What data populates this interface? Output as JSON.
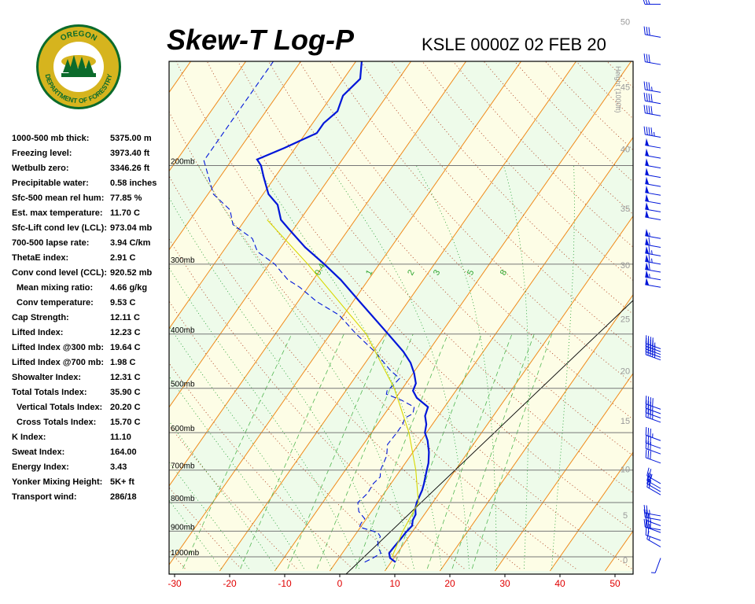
{
  "header": {
    "title": "Skew-T Log-P",
    "subtitle": "KSLE 0000Z 02 FEB 20",
    "logo_text_top": "OREGON",
    "logo_text_bottom": "DEPARTMENT OF FORESTRY"
  },
  "indices": [
    {
      "label": "1000-500 mb thick:",
      "value": "5375.00 m",
      "indent": false
    },
    {
      "label": "Freezing level:",
      "value": "3973.40 ft",
      "indent": false
    },
    {
      "label": "Wetbulb zero:",
      "value": "3346.26 ft",
      "indent": false
    },
    {
      "label": "Precipitable water:",
      "value": "0.58 inches",
      "indent": false
    },
    {
      "label": "Sfc-500 mean rel hum:",
      "value": "77.85 %",
      "indent": false
    },
    {
      "label": "Est. max temperature:",
      "value": "11.70 C",
      "indent": false
    },
    {
      "label": "Sfc-Lift cond lev (LCL):",
      "value": "973.04 mb",
      "indent": false
    },
    {
      "label": "700-500 lapse rate:",
      "value": "3.94 C/km",
      "indent": false
    },
    {
      "label": "ThetaE index:",
      "value": "2.91 C",
      "indent": false
    },
    {
      "label": "Conv cond level (CCL):",
      "value": "920.52 mb",
      "indent": false
    },
    {
      "label": "Mean mixing ratio:",
      "value": "4.66 g/kg",
      "indent": true
    },
    {
      "label": "Conv temperature:",
      "value": "9.53 C",
      "indent": true
    },
    {
      "label": "Cap Strength:",
      "value": "12.11 C",
      "indent": false
    },
    {
      "label": "Lifted Index:",
      "value": "12.23 C",
      "indent": false
    },
    {
      "label": "Lifted Index @300 mb:",
      "value": "19.64 C",
      "indent": false
    },
    {
      "label": "Lifted Index @700 mb:",
      "value": "1.98 C",
      "indent": false
    },
    {
      "label": "Showalter Index:",
      "value": "12.31 C",
      "indent": false
    },
    {
      "label": "Total Totals Index:",
      "value": "35.90 C",
      "indent": false
    },
    {
      "label": "Vertical Totals Index:",
      "value": "20.20 C",
      "indent": true
    },
    {
      "label": "Cross Totals Index:",
      "value": "15.70 C",
      "indent": true
    },
    {
      "label": "K Index:",
      "value": "11.10",
      "indent": false
    },
    {
      "label": "Sweat Index:",
      "value": "164.00",
      "indent": false
    },
    {
      "label": "Energy Index:",
      "value": "3.43",
      "indent": false
    },
    {
      "label": "Yonker Mixing Height:",
      "value": "5K+ ft",
      "indent": false
    },
    {
      "label": "Transport wind:",
      "value": "286/18",
      "indent": false
    }
  ],
  "chart_data": {
    "type": "line",
    "title": "Skew-T Log-P",
    "subtitle": "KSLE 0000Z 02 FEB 20",
    "x_axis": {
      "ticks": [
        -30,
        -20,
        -10,
        0,
        10,
        20,
        30,
        40,
        50
      ],
      "tick_labels": [
        "-30",
        "-20",
        "-10",
        "0",
        "10",
        "20",
        "30",
        "40",
        "50"
      ],
      "color": "#e00000"
    },
    "pressure_levels": [
      {
        "p": 200,
        "label": "200mb"
      },
      {
        "p": 300,
        "label": "300mb"
      },
      {
        "p": 400,
        "label": "400mb"
      },
      {
        "p": 500,
        "label": "500mb"
      },
      {
        "p": 600,
        "label": "600mb"
      },
      {
        "p": 700,
        "label": "700mb"
      },
      {
        "p": 800,
        "label": "800mb"
      },
      {
        "p": 900,
        "label": "900mb"
      },
      {
        "p": 1000,
        "label": "1000mb"
      }
    ],
    "height_axis": {
      "label": "Height (1000ft)",
      "ticks": [
        0,
        5,
        10,
        15,
        20,
        25,
        30,
        35,
        40,
        45,
        50
      ],
      "tick_labels": [
        "0",
        "5",
        "10",
        "15",
        "20",
        "25",
        "30",
        "35",
        "40",
        "45",
        "50"
      ]
    },
    "mixing_ratio_labels": [
      "0.4",
      "1",
      "2",
      "3",
      "5",
      "8"
    ],
    "series": [
      {
        "name": "Temperature",
        "color": "#0016d9",
        "style": "solid",
        "points": [
          {
            "p": 1022,
            "t": 10.8
          },
          {
            "p": 1005,
            "t": 9.3
          },
          {
            "p": 985,
            "t": 8.5
          },
          {
            "p": 960,
            "t": 8.6
          },
          {
            "p": 930,
            "t": 8.8
          },
          {
            "p": 905,
            "t": 8.9
          },
          {
            "p": 880,
            "t": 9.2
          },
          {
            "p": 860,
            "t": 8.6
          },
          {
            "p": 840,
            "t": 8.4
          },
          {
            "p": 820,
            "t": 7.6
          },
          {
            "p": 800,
            "t": 7.1
          },
          {
            "p": 780,
            "t": 6.8
          },
          {
            "p": 760,
            "t": 6.5
          },
          {
            "p": 740,
            "t": 6.0
          },
          {
            "p": 720,
            "t": 5.4
          },
          {
            "p": 700,
            "t": 4.8
          },
          {
            "p": 680,
            "t": 4.2
          },
          {
            "p": 650,
            "t": 2.9
          },
          {
            "p": 620,
            "t": 1.2
          },
          {
            "p": 600,
            "t": -0.3
          },
          {
            "p": 580,
            "t": -1.1
          },
          {
            "p": 560,
            "t": -2.4
          },
          {
            "p": 540,
            "t": -3.0
          },
          {
            "p": 520,
            "t": -6.2
          },
          {
            "p": 505,
            "t": -7.8
          },
          {
            "p": 490,
            "t": -8.2
          },
          {
            "p": 470,
            "t": -9.8
          },
          {
            "p": 450,
            "t": -11.8
          },
          {
            "p": 430,
            "t": -14.5
          },
          {
            "p": 400,
            "t": -19.5
          },
          {
            "p": 350,
            "t": -28.8
          },
          {
            "p": 320,
            "t": -35.0
          },
          {
            "p": 300,
            "t": -40.0
          },
          {
            "p": 280,
            "t": -45.6
          },
          {
            "p": 260,
            "t": -50.8
          },
          {
            "p": 250,
            "t": -53.5
          },
          {
            "p": 235,
            "t": -56.0
          },
          {
            "p": 225,
            "t": -59.0
          },
          {
            "p": 210,
            "t": -62.0
          },
          {
            "p": 200,
            "t": -64.0
          },
          {
            "p": 195,
            "t": -65.5
          },
          {
            "p": 186,
            "t": -62.0
          },
          {
            "p": 175,
            "t": -58.0
          },
          {
            "p": 168,
            "t": -58.0
          },
          {
            "p": 160,
            "t": -57.0
          },
          {
            "p": 150,
            "t": -58.0
          },
          {
            "p": 140,
            "t": -57.0
          },
          {
            "p": 130,
            "t": -59.0
          },
          {
            "p": 122,
            "t": -58.5
          },
          {
            "p": 110,
            "t": -60.0
          },
          {
            "p": 100,
            "t": -60.0
          }
        ]
      },
      {
        "name": "Dewpoint",
        "color": "#0016d9",
        "style": "dashed",
        "points": [
          {
            "p": 1022,
            "t": 5.2
          },
          {
            "p": 1005,
            "t": 6.2
          },
          {
            "p": 985,
            "t": 7.0
          },
          {
            "p": 960,
            "t": 5.7
          },
          {
            "p": 940,
            "t": 5.0
          },
          {
            "p": 920,
            "t": 4.8
          },
          {
            "p": 905,
            "t": 3.8
          },
          {
            "p": 885,
            "t": -0.2
          },
          {
            "p": 870,
            "t": -0.4
          },
          {
            "p": 855,
            "t": -0.3
          },
          {
            "p": 830,
            "t": -2.3
          },
          {
            "p": 800,
            "t": -3.6
          },
          {
            "p": 770,
            "t": -3.0
          },
          {
            "p": 740,
            "t": -3.2
          },
          {
            "p": 720,
            "t": -2.8
          },
          {
            "p": 700,
            "t": -3.6
          },
          {
            "p": 660,
            "t": -4.3
          },
          {
            "p": 630,
            "t": -5.6
          },
          {
            "p": 600,
            "t": -5.4
          },
          {
            "p": 580,
            "t": -5.4
          },
          {
            "p": 565,
            "t": -5.8
          },
          {
            "p": 555,
            "t": -4.9
          },
          {
            "p": 540,
            "t": -5.5
          },
          {
            "p": 525,
            "t": -8.7
          },
          {
            "p": 512,
            "t": -12.2
          },
          {
            "p": 505,
            "t": -12.5
          },
          {
            "p": 495,
            "t": -12.1
          },
          {
            "p": 480,
            "t": -11.8
          },
          {
            "p": 465,
            "t": -14.4
          },
          {
            "p": 430,
            "t": -19.7
          },
          {
            "p": 400,
            "t": -25.3
          },
          {
            "p": 370,
            "t": -30.8
          },
          {
            "p": 350,
            "t": -36.6
          },
          {
            "p": 330,
            "t": -41.5
          },
          {
            "p": 320,
            "t": -44.6
          },
          {
            "p": 300,
            "t": -49.0
          },
          {
            "p": 285,
            "t": -53.7
          },
          {
            "p": 270,
            "t": -56.3
          },
          {
            "p": 255,
            "t": -61.6
          },
          {
            "p": 240,
            "t": -64.0
          },
          {
            "p": 225,
            "t": -69.0
          },
          {
            "p": 210,
            "t": -72.0
          },
          {
            "p": 196,
            "t": -75.0
          },
          {
            "p": 180,
            "t": -75.0
          },
          {
            "p": 165,
            "t": -75.0
          },
          {
            "p": 150,
            "t": -75.0
          },
          {
            "p": 135,
            "t": -75.0
          },
          {
            "p": 120,
            "t": -75.0
          },
          {
            "p": 110,
            "t": -75.0
          },
          {
            "p": 100,
            "t": -75.0
          }
        ]
      },
      {
        "name": "Parcel",
        "color": "#d8d800",
        "style": "solid",
        "points": [
          {
            "p": 1000,
            "t": 9.5
          },
          {
            "p": 900,
            "t": 8.2
          },
          {
            "p": 800,
            "t": 7.4
          },
          {
            "p": 700,
            "t": 2.8
          },
          {
            "p": 600,
            "t": -3.2
          },
          {
            "p": 500,
            "t": -11.5
          },
          {
            "p": 400,
            "t": -23.5
          },
          {
            "p": 300,
            "t": -43.0
          },
          {
            "p": 250,
            "t": -56.0
          }
        ]
      }
    ],
    "wind_barbs": [
      {
        "p": 1005,
        "dir": 200,
        "spd": 5
      },
      {
        "p": 960,
        "dir": 300,
        "spd": 15
      },
      {
        "p": 935,
        "dir": 290,
        "spd": 20
      },
      {
        "p": 905,
        "dir": 290,
        "spd": 30
      },
      {
        "p": 895,
        "dir": 280,
        "spd": 25
      },
      {
        "p": 880,
        "dir": 290,
        "spd": 25
      },
      {
        "p": 860,
        "dir": 280,
        "spd": 25
      },
      {
        "p": 845,
        "dir": 280,
        "spd": 25
      },
      {
        "p": 775,
        "dir": 300,
        "spd": 20
      },
      {
        "p": 765,
        "dir": 300,
        "spd": 20
      },
      {
        "p": 755,
        "dir": 300,
        "spd": 20
      },
      {
        "p": 740,
        "dir": 300,
        "spd": 25
      },
      {
        "p": 680,
        "dir": 290,
        "spd": 30
      },
      {
        "p": 655,
        "dir": 290,
        "spd": 30
      },
      {
        "p": 640,
        "dir": 290,
        "spd": 30
      },
      {
        "p": 620,
        "dir": 290,
        "spd": 35
      },
      {
        "p": 575,
        "dir": 290,
        "spd": 35
      },
      {
        "p": 565,
        "dir": 290,
        "spd": 35
      },
      {
        "p": 555,
        "dir": 290,
        "spd": 35
      },
      {
        "p": 545,
        "dir": 290,
        "spd": 40
      },
      {
        "p": 445,
        "dir": 290,
        "spd": 45
      },
      {
        "p": 440,
        "dir": 290,
        "spd": 45
      },
      {
        "p": 435,
        "dir": 290,
        "spd": 45
      },
      {
        "p": 430,
        "dir": 290,
        "spd": 45
      },
      {
        "p": 425,
        "dir": 290,
        "spd": 45
      },
      {
        "p": 330,
        "dir": 280,
        "spd": 50
      },
      {
        "p": 320,
        "dir": 280,
        "spd": 55
      },
      {
        "p": 310,
        "dir": 280,
        "spd": 60
      },
      {
        "p": 300,
        "dir": 280,
        "spd": 65
      },
      {
        "p": 290,
        "dir": 280,
        "spd": 65
      },
      {
        "p": 280,
        "dir": 280,
        "spd": 60
      },
      {
        "p": 270,
        "dir": 280,
        "spd": 55
      },
      {
        "p": 250,
        "dir": 280,
        "spd": 50
      },
      {
        "p": 242,
        "dir": 280,
        "spd": 50
      },
      {
        "p": 234,
        "dir": 280,
        "spd": 50
      },
      {
        "p": 226,
        "dir": 280,
        "spd": 50
      },
      {
        "p": 218,
        "dir": 280,
        "spd": 50
      },
      {
        "p": 210,
        "dir": 280,
        "spd": 50
      },
      {
        "p": 202,
        "dir": 280,
        "spd": 50
      },
      {
        "p": 194,
        "dir": 280,
        "spd": 50
      },
      {
        "p": 186,
        "dir": 280,
        "spd": 50
      },
      {
        "p": 178,
        "dir": 280,
        "spd": 45
      },
      {
        "p": 163,
        "dir": 280,
        "spd": 40
      },
      {
        "p": 155,
        "dir": 280,
        "spd": 40
      },
      {
        "p": 148,
        "dir": 280,
        "spd": 35
      },
      {
        "p": 132,
        "dir": 280,
        "spd": 30
      },
      {
        "p": 118,
        "dir": 280,
        "spd": 30
      },
      {
        "p": 103,
        "dir": 270,
        "spd": 25
      }
    ]
  }
}
